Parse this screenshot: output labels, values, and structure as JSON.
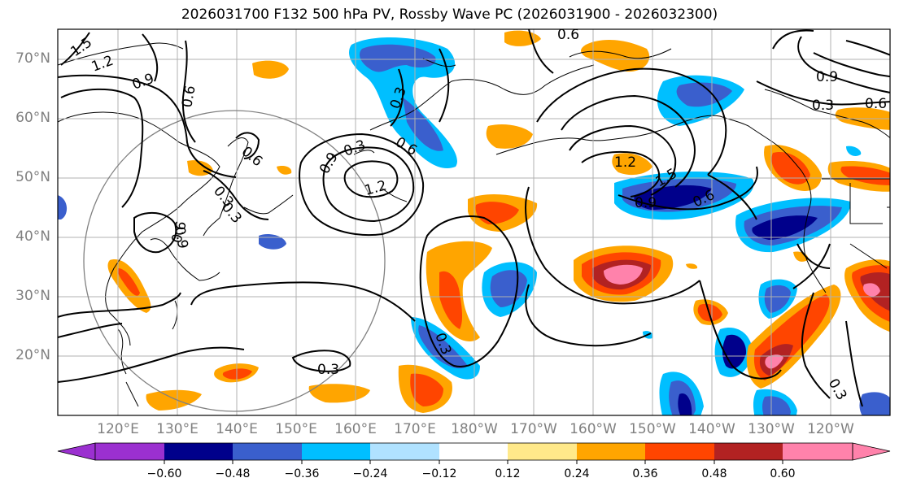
{
  "title": "2026031700 F132 500 hPa PV, Rossby Wave PC (2026031900 - 2026032300)",
  "lat_labels": [
    "70°N",
    "60°N",
    "50°N",
    "40°N",
    "30°N",
    "20°N"
  ],
  "lon_labels": [
    "120°E",
    "130°E",
    "140°E",
    "150°E",
    "160°E",
    "170°E",
    "180°W",
    "170°W",
    "160°W",
    "150°W",
    "140°W",
    "130°W",
    "120°W"
  ],
  "colorbar": {
    "ticks": [
      "−0.60",
      "−0.48",
      "−0.36",
      "−0.24",
      "−0.12",
      "0.12",
      "0.24",
      "0.36",
      "0.48",
      "0.60"
    ],
    "colors": [
      "#9b30d0",
      "#00008b",
      "#3a5fcd",
      "#00bfff",
      "#b0e2ff",
      "#ffffff",
      "#ffe98a",
      "#ffa500",
      "#ff4500",
      "#b22222",
      "#ff82ab"
    ]
  },
  "contour_labels": [
    "0.6",
    "1.5",
    "1.2",
    "0.9",
    "0.6",
    "0.3",
    "0.6",
    "0.3",
    "0.9",
    "1.2",
    "0.3",
    "0.6",
    "0.3",
    "0.9",
    "0.3",
    "0.6",
    "1.2",
    "1.5",
    "0.9",
    "0.6",
    "0.3",
    "0.9",
    "0.3",
    "0.6",
    "0.3"
  ]
}
